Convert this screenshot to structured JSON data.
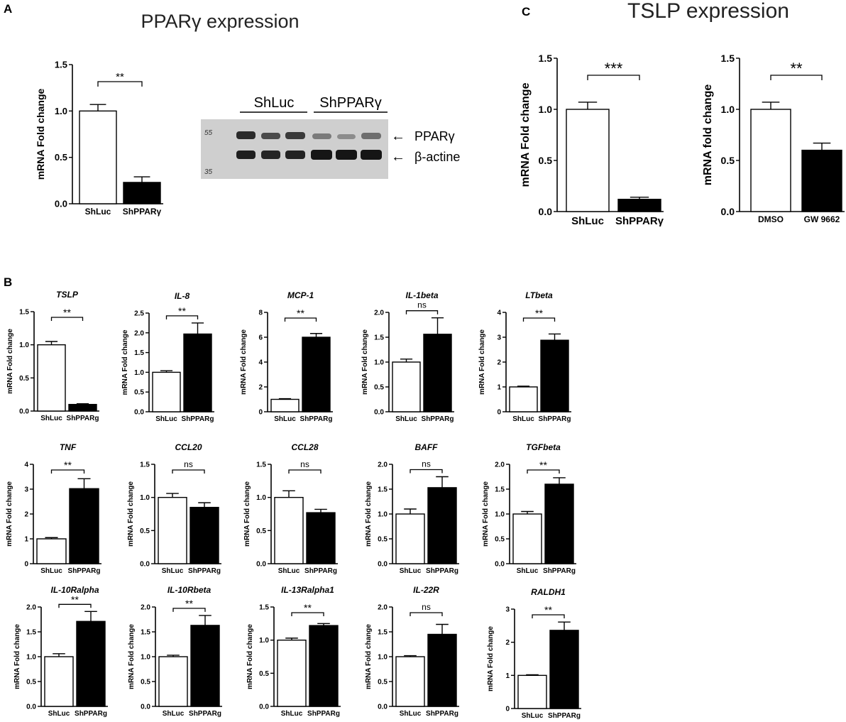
{
  "panels": {
    "A": "A",
    "B": "B",
    "C": "C"
  },
  "colors": {
    "group1_fill": "#ffffff",
    "group2_fill": "#000000",
    "axis": "#000000",
    "blot_bg": "#cfcfcf",
    "band": "#303030"
  },
  "panel_a": {
    "title": "PPARγ expression",
    "blot": {
      "group_labels": [
        "ShLuc",
        "ShPPARγ"
      ],
      "band_labels": [
        "PPARγ",
        "β-actine"
      ],
      "marker_labels": [
        "55",
        "35"
      ],
      "band_arrows": [
        "←",
        "←"
      ]
    }
  },
  "panel_c": {
    "title": "TSLP expression"
  },
  "chart_data": [
    {
      "id": "A1",
      "type": "bar",
      "title": "",
      "categories": [
        "ShLuc",
        "ShPPARγ"
      ],
      "values": [
        1.0,
        0.23
      ],
      "errors": [
        0.07,
        0.06
      ],
      "ylabel": "mRNA Fold change",
      "ylim": [
        0,
        1.5
      ],
      "ticks": [
        "0.0",
        "0.5",
        "1.0",
        "1.5"
      ],
      "significance": "**"
    },
    {
      "id": "C1",
      "type": "bar",
      "title": "",
      "categories": [
        "ShLuc",
        "ShPPARγ"
      ],
      "values": [
        1.0,
        0.12
      ],
      "errors": [
        0.07,
        0.02
      ],
      "ylabel": "mRNA Fold change",
      "ylim": [
        0,
        1.5
      ],
      "ticks": [
        "0.0",
        "0.5",
        "1.0",
        "1.5"
      ],
      "significance": "***"
    },
    {
      "id": "C2",
      "type": "bar",
      "title": "",
      "categories": [
        "DMSO",
        "GW 9662"
      ],
      "values": [
        1.0,
        0.6
      ],
      "errors": [
        0.07,
        0.07
      ],
      "ylabel": "mRNA fold change",
      "ylim": [
        0,
        1.5
      ],
      "ticks": [
        "0.0",
        "0.5",
        "1.0",
        "1.5"
      ],
      "significance": "**"
    },
    {
      "id": "B1",
      "type": "bar",
      "title": "TSLP",
      "categories": [
        "ShLuc",
        "ShPPARg"
      ],
      "values": [
        1.0,
        0.1
      ],
      "errors": [
        0.05,
        0.01
      ],
      "ylabel": "mRNA Fold change",
      "ylim": [
        0,
        1.5
      ],
      "ticks": [
        "0.0",
        "0.5",
        "1.0",
        "1.5"
      ],
      "significance": "**"
    },
    {
      "id": "B2",
      "type": "bar",
      "title": "IL-8",
      "categories": [
        "ShLuc",
        "ShPPARg"
      ],
      "values": [
        1.0,
        1.97
      ],
      "errors": [
        0.04,
        0.28
      ],
      "ylabel": "mRNA Fold change",
      "ylim": [
        0,
        2.5
      ],
      "ticks": [
        "0.0",
        "0.5",
        "1.0",
        "1.5",
        "2.0",
        "2.5"
      ],
      "significance": "**"
    },
    {
      "id": "B3",
      "type": "bar",
      "title": "MCP-1",
      "categories": [
        "ShLuc",
        "ShPPARg"
      ],
      "values": [
        1.0,
        6.0
      ],
      "errors": [
        0.05,
        0.3
      ],
      "ylabel": "mRNA Fold change",
      "ylim": [
        0,
        8
      ],
      "ticks": [
        "0",
        "2",
        "4",
        "6",
        "8"
      ],
      "significance": "**"
    },
    {
      "id": "B4",
      "type": "bar",
      "title": "IL-1beta",
      "categories": [
        "ShLuc",
        "ShPPARg"
      ],
      "values": [
        1.0,
        1.56
      ],
      "errors": [
        0.06,
        0.33
      ],
      "ylabel": "mRNA Fold change",
      "ylim": [
        0,
        2.0
      ],
      "ticks": [
        "0.0",
        "0.5",
        "1.0",
        "1.5",
        "2.0"
      ],
      "significance": "ns"
    },
    {
      "id": "B5",
      "type": "bar",
      "title": "LTbeta",
      "categories": [
        "ShLuc",
        "ShPPARg"
      ],
      "values": [
        1.0,
        2.88
      ],
      "errors": [
        0.03,
        0.25
      ],
      "ylabel": "mRNA Fold change",
      "ylim": [
        0,
        4
      ],
      "ticks": [
        "0",
        "1",
        "2",
        "3",
        "4"
      ],
      "significance": "**"
    },
    {
      "id": "B6",
      "type": "bar",
      "title": "TNF",
      "categories": [
        "ShLuc",
        "ShPPARg"
      ],
      "values": [
        1.0,
        3.02
      ],
      "errors": [
        0.05,
        0.4
      ],
      "ylabel": "mRNA Fold change",
      "ylim": [
        0,
        4
      ],
      "ticks": [
        "0",
        "1",
        "2",
        "3",
        "4"
      ],
      "significance": "**"
    },
    {
      "id": "B7",
      "type": "bar",
      "title": "CCL20",
      "categories": [
        "ShLuc",
        "ShPPARg"
      ],
      "values": [
        1.0,
        0.85
      ],
      "errors": [
        0.06,
        0.07
      ],
      "ylabel": "mRNA Fold change",
      "ylim": [
        0,
        1.5
      ],
      "ticks": [
        "0.0",
        "0.5",
        "1.0",
        "1.5"
      ],
      "significance": "ns"
    },
    {
      "id": "B8",
      "type": "bar",
      "title": "CCL28",
      "categories": [
        "ShLuc",
        "ShPPARg"
      ],
      "values": [
        1.0,
        0.77
      ],
      "errors": [
        0.1,
        0.05
      ],
      "ylabel": "mRNA Fold change",
      "ylim": [
        0,
        1.5
      ],
      "ticks": [
        "0.0",
        "0.5",
        "1.0",
        "1.5"
      ],
      "significance": "ns"
    },
    {
      "id": "B9",
      "type": "bar",
      "title": "BAFF",
      "categories": [
        "ShLuc",
        "ShPPARg"
      ],
      "values": [
        1.0,
        1.53
      ],
      "errors": [
        0.1,
        0.22
      ],
      "ylabel": "mRNA Fold change",
      "ylim": [
        0,
        2.0
      ],
      "ticks": [
        "0.0",
        "0.5",
        "1.0",
        "1.5",
        "2.0"
      ],
      "significance": "ns"
    },
    {
      "id": "B10",
      "type": "bar",
      "title": "TGFbeta",
      "categories": [
        "ShLuc",
        "ShPPARg"
      ],
      "values": [
        1.0,
        1.6
      ],
      "errors": [
        0.05,
        0.13
      ],
      "ylabel": "mRNA Fold change",
      "ylim": [
        0,
        2.0
      ],
      "ticks": [
        "0.0",
        "0.5",
        "1.0",
        "1.5",
        "2.0"
      ],
      "significance": "**"
    },
    {
      "id": "B11",
      "type": "bar",
      "title": "IL-10Ralpha",
      "categories": [
        "ShLuc",
        "ShPPARg"
      ],
      "values": [
        1.0,
        1.71
      ],
      "errors": [
        0.06,
        0.2
      ],
      "ylabel": "mRNA Fold change",
      "ylim": [
        0,
        2.0
      ],
      "ticks": [
        "0.0",
        "0.5",
        "1.0",
        "1.5",
        "2.0"
      ],
      "significance": "**"
    },
    {
      "id": "B12",
      "type": "bar",
      "title": "IL-10Rbeta",
      "categories": [
        "ShLuc",
        "ShPPARg"
      ],
      "values": [
        1.0,
        1.63
      ],
      "errors": [
        0.03,
        0.2
      ],
      "ylabel": "mRNA Fold change",
      "ylim": [
        0,
        2.0
      ],
      "ticks": [
        "0.0",
        "0.5",
        "1.0",
        "1.5",
        "2.0"
      ],
      "significance": "**"
    },
    {
      "id": "B13",
      "type": "bar",
      "title": "IL-13Ralpha1",
      "categories": [
        "ShLuc",
        "ShPPARg"
      ],
      "values": [
        1.0,
        1.22
      ],
      "errors": [
        0.03,
        0.03
      ],
      "ylabel": "mRNA Fold change",
      "ylim": [
        0,
        1.5
      ],
      "ticks": [
        "0.0",
        "0.5",
        "1.0",
        "1.5"
      ],
      "significance": "**"
    },
    {
      "id": "B14",
      "type": "bar",
      "title": "IL-22R",
      "categories": [
        "ShLuc",
        "ShPPARg"
      ],
      "values": [
        1.0,
        1.45
      ],
      "errors": [
        0.02,
        0.2
      ],
      "ylabel": "mRNA Fold change",
      "ylim": [
        0,
        2.0
      ],
      "ticks": [
        "0.0",
        "0.5",
        "1.0",
        "1.5",
        "2.0"
      ],
      "significance": "ns"
    },
    {
      "id": "B15",
      "type": "bar",
      "title": "RALDH1",
      "categories": [
        "ShLuc",
        "ShPPARg"
      ],
      "values": [
        1.0,
        2.36
      ],
      "errors": [
        0.02,
        0.25
      ],
      "ylabel": "mRNA Fold change",
      "ylim": [
        0,
        3
      ],
      "ticks": [
        "0",
        "1",
        "2",
        "3"
      ],
      "significance": "**"
    }
  ]
}
